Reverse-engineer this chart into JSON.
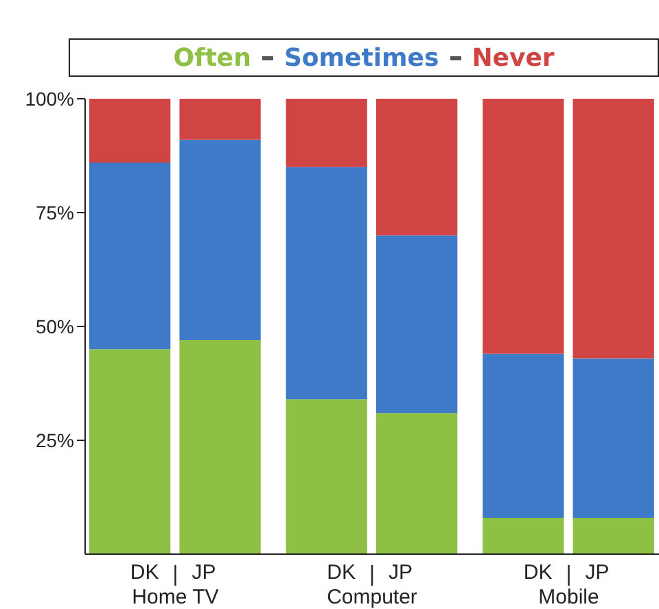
{
  "chart_data": {
    "type": "bar",
    "stacked": true,
    "legend": "top",
    "categories": [
      "DK",
      "JP",
      "DK",
      "JP",
      "DK",
      "JP"
    ],
    "annotations": [
      "Home TV",
      "Computer",
      "Mobile"
    ],
    "series": [
      {
        "name": "Often",
        "color": "#8dc044",
        "values": [
          45,
          47,
          34,
          31,
          8,
          8
        ]
      },
      {
        "name": "Sometimes",
        "color": "#3f7ac8",
        "values": [
          41,
          44,
          51,
          39,
          36,
          35
        ]
      },
      {
        "name": "Never",
        "color": "#d04444",
        "values": [
          14,
          9,
          15,
          30,
          56,
          57
        ]
      }
    ],
    "ylim": [
      0,
      100
    ],
    "yticks": [
      {
        "value": 25,
        "label": "25%"
      },
      {
        "value": 50,
        "label": "50%"
      },
      {
        "value": 75,
        "label": "75%"
      },
      {
        "value": 100,
        "label": "100%"
      }
    ]
  }
}
